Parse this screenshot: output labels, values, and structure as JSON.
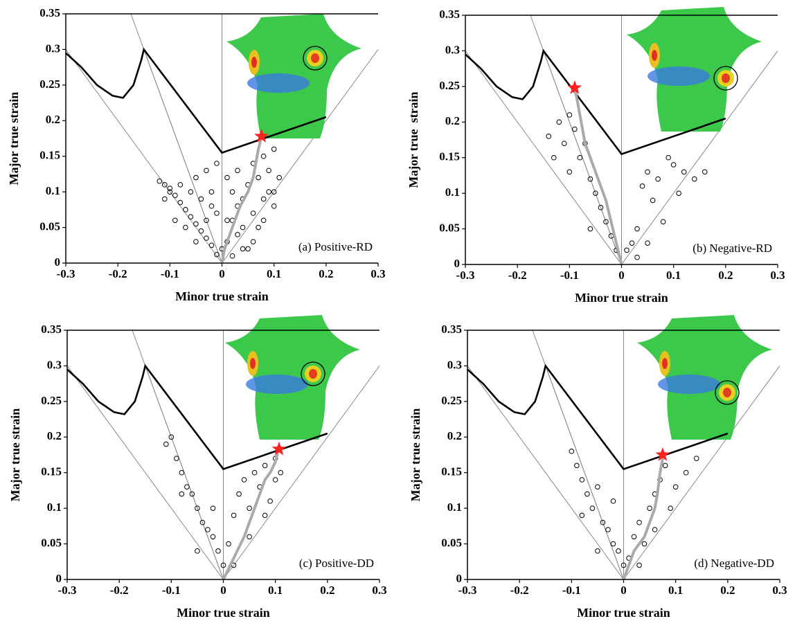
{
  "chart_data": [
    {
      "type": "scatter",
      "label": "(a) Positive-RD",
      "xlabel": "Minor true strain",
      "ylabel": "Major true strain",
      "xlim": [
        -0.3,
        0.3
      ],
      "xticks": [
        -0.3,
        -0.2,
        -0.1,
        0,
        0.1,
        0.2,
        0.3
      ],
      "ylim": [
        0,
        0.35
      ],
      "yticks": [
        0,
        0.05,
        0.1,
        0.15,
        0.2,
        0.25,
        0.3,
        0.35
      ],
      "point_color": "#000000",
      "path_color": "#aaaaaa",
      "star_color": "#ff2020",
      "flc_color": "#000000",
      "reference_color": "#888888",
      "points": {
        "x": [
          -0.12,
          -0.11,
          -0.1,
          -0.09,
          -0.08,
          -0.07,
          -0.06,
          -0.05,
          -0.04,
          -0.03,
          -0.02,
          -0.01,
          -0.11,
          -0.1,
          -0.08,
          -0.06,
          -0.04,
          -0.02,
          -0.05,
          -0.03,
          -0.01,
          0.01,
          0.02,
          0.03,
          0.04,
          0.05,
          0.06,
          0.07,
          0.08,
          0.09,
          0.1,
          0.11,
          0.02,
          0.04,
          0.06,
          0.08,
          0.1,
          0,
          0.01,
          0.02,
          0.03,
          0.05,
          0.07,
          0.09,
          -0.07,
          -0.05,
          -0.03,
          -0.01,
          0.01,
          0.03,
          0.06,
          0.08,
          0.1,
          0.04,
          -0.09,
          -0.02
        ],
        "y": [
          0.115,
          0.11,
          0.105,
          0.095,
          0.085,
          0.075,
          0.065,
          0.055,
          0.045,
          0.035,
          0.025,
          0.012,
          0.09,
          0.1,
          0.11,
          0.1,
          0.09,
          0.08,
          0.12,
          0.13,
          0.14,
          0.12,
          0.1,
          0.13,
          0.09,
          0.11,
          0.14,
          0.12,
          0.15,
          0.13,
          0.16,
          0.12,
          0.06,
          0.05,
          0.07,
          0.09,
          0.08,
          0.02,
          0.03,
          0.01,
          0.04,
          0.02,
          0.05,
          0.1,
          0.05,
          0.03,
          0.06,
          0.07,
          0.06,
          0.08,
          0.03,
          0.06,
          0.1,
          0.02,
          0.06,
          0.1
        ]
      },
      "flc": {
        "x": [
          -0.3,
          -0.27,
          -0.24,
          -0.21,
          -0.19,
          -0.17,
          -0.155,
          -0.15,
          0,
          0.2
        ],
        "y": [
          0.295,
          0.275,
          0.25,
          0.235,
          0.232,
          0.25,
          0.285,
          0.3,
          0.155,
          0.205
        ]
      },
      "reference_lines": [
        {
          "x": [
            -0.3,
            0
          ],
          "y": [
            0.3,
            0
          ]
        },
        {
          "x": [
            -0.175,
            0
          ],
          "y": [
            0.35,
            0
          ]
        },
        {
          "x": [
            -0.15,
            0
          ],
          "y": [
            0.3,
            0
          ]
        },
        {
          "x": [
            0,
            0
          ],
          "y": [
            0,
            0.35
          ]
        },
        {
          "x": [
            0,
            0.3
          ],
          "y": [
            0,
            0.3
          ]
        }
      ],
      "strain_path": {
        "x": [
          0,
          0.005,
          0.02,
          0.035,
          0.05,
          0.06,
          0.065,
          0.07,
          0.075
        ],
        "y": [
          0,
          0.02,
          0.05,
          0.08,
          0.1,
          0.12,
          0.14,
          0.16,
          0.175
        ]
      },
      "failure_point": {
        "x": 0.076,
        "y": 0.178
      }
    },
    {
      "type": "scatter",
      "label": "(b) Negative-RD",
      "xlabel": "Minor true strain",
      "ylabel": "Major true  strain",
      "xlim": [
        -0.3,
        0.3
      ],
      "xticks": [
        -0.3,
        -0.2,
        -0.1,
        0,
        0.1,
        0.2,
        0.3
      ],
      "ylim": [
        0,
        0.35
      ],
      "yticks": [
        0,
        0.05,
        0.1,
        0.15,
        0.2,
        0.25,
        0.3,
        0.35
      ],
      "point_color": "#000000",
      "path_color": "#aaaaaa",
      "star_color": "#ff2020",
      "flc_color": "#000000",
      "reference_color": "#888888",
      "points": {
        "x": [
          -0.14,
          -0.13,
          -0.12,
          -0.11,
          -0.1,
          -0.09,
          -0.08,
          -0.07,
          -0.06,
          -0.05,
          -0.04,
          -0.03,
          -0.02,
          -0.01,
          0.01,
          0.02,
          0.03,
          0.04,
          0.05,
          0.06,
          0.07,
          0.08,
          0.09,
          0.1,
          0.11,
          0.12,
          0.14,
          0.16,
          0.03,
          0.05,
          -0.06,
          -0.1
        ],
        "y": [
          0.18,
          0.15,
          0.2,
          0.17,
          0.21,
          0.19,
          0.15,
          0.17,
          0.12,
          0.1,
          0.08,
          0.06,
          0.04,
          0.02,
          0.02,
          0.03,
          0.05,
          0.11,
          0.13,
          0.09,
          0.12,
          0.06,
          0.15,
          0.14,
          0.1,
          0.13,
          0.12,
          0.13,
          0.01,
          0.03,
          0.05,
          0.13
        ]
      },
      "flc": {
        "x": [
          -0.3,
          -0.27,
          -0.24,
          -0.21,
          -0.19,
          -0.17,
          -0.155,
          -0.15,
          0,
          0.2
        ],
        "y": [
          0.295,
          0.275,
          0.25,
          0.235,
          0.232,
          0.25,
          0.285,
          0.3,
          0.155,
          0.205
        ]
      },
      "reference_lines": [
        {
          "x": [
            -0.3,
            0
          ],
          "y": [
            0.3,
            0
          ]
        },
        {
          "x": [
            -0.175,
            0
          ],
          "y": [
            0.35,
            0
          ]
        },
        {
          "x": [
            -0.15,
            0
          ],
          "y": [
            0.3,
            0
          ]
        },
        {
          "x": [
            0,
            0
          ],
          "y": [
            0,
            0.35
          ]
        },
        {
          "x": [
            0,
            0.3
          ],
          "y": [
            0,
            0.3
          ]
        }
      ],
      "strain_path": {
        "x": [
          0,
          -0.01,
          -0.02,
          -0.03,
          -0.045,
          -0.06,
          -0.07,
          -0.075,
          -0.08,
          -0.085,
          -0.09
        ],
        "y": [
          0,
          0.03,
          0.06,
          0.09,
          0.12,
          0.15,
          0.17,
          0.19,
          0.21,
          0.23,
          0.248
        ]
      },
      "failure_point": {
        "x": -0.09,
        "y": 0.248
      }
    },
    {
      "type": "scatter",
      "label": "(c) Positive-DD",
      "xlabel": "Minor true strain",
      "ylabel": "Major true strain",
      "xlim": [
        -0.3,
        0.3
      ],
      "xticks": [
        -0.3,
        -0.2,
        -0.1,
        0,
        0.1,
        0.2,
        0.3
      ],
      "ylim": [
        0,
        0.35
      ],
      "yticks": [
        0,
        0.05,
        0.1,
        0.15,
        0.2,
        0.25,
        0.3,
        0.35
      ],
      "point_color": "#000000",
      "path_color": "#aaaaaa",
      "star_color": "#ff2020",
      "flc_color": "#000000",
      "reference_color": "#888888",
      "points": {
        "x": [
          -0.11,
          -0.1,
          -0.09,
          -0.08,
          -0.07,
          -0.06,
          -0.05,
          -0.04,
          -0.03,
          -0.02,
          -0.01,
          0,
          0.01,
          0.02,
          0.03,
          0.04,
          0.05,
          0.06,
          0.07,
          0.08,
          0.09,
          0.1,
          0.11,
          -0.08,
          -0.05,
          -0.02,
          0.02,
          0.05,
          0.08,
          0.1
        ],
        "y": [
          0.19,
          0.2,
          0.17,
          0.15,
          0.13,
          0.12,
          0.1,
          0.08,
          0.07,
          0.06,
          0.04,
          0.02,
          0.05,
          0.09,
          0.12,
          0.14,
          0.1,
          0.15,
          0.13,
          0.16,
          0.11,
          0.14,
          0.15,
          0.12,
          0.04,
          0.1,
          0.02,
          0.06,
          0.09,
          0.17
        ]
      },
      "flc": {
        "x": [
          -0.3,
          -0.27,
          -0.24,
          -0.21,
          -0.19,
          -0.17,
          -0.155,
          -0.15,
          0,
          0.2
        ],
        "y": [
          0.295,
          0.275,
          0.25,
          0.235,
          0.232,
          0.25,
          0.285,
          0.3,
          0.155,
          0.205
        ]
      },
      "reference_lines": [
        {
          "x": [
            -0.3,
            0
          ],
          "y": [
            0.3,
            0
          ]
        },
        {
          "x": [
            -0.175,
            0
          ],
          "y": [
            0.35,
            0
          ]
        },
        {
          "x": [
            -0.15,
            0
          ],
          "y": [
            0.3,
            0
          ]
        },
        {
          "x": [
            0,
            0
          ],
          "y": [
            0,
            0.35
          ]
        },
        {
          "x": [
            0,
            0.3
          ],
          "y": [
            0,
            0.3
          ]
        }
      ],
      "strain_path": {
        "x": [
          0,
          0.02,
          0.04,
          0.05,
          0.06,
          0.07,
          0.08,
          0.09,
          0.1,
          0.105
        ],
        "y": [
          0,
          0.03,
          0.06,
          0.08,
          0.1,
          0.12,
          0.14,
          0.15,
          0.165,
          0.18
        ]
      },
      "failure_point": {
        "x": 0.107,
        "y": 0.183
      }
    },
    {
      "type": "scatter",
      "label": "(d) Negative-DD",
      "xlabel": "Minor true strain",
      "ylabel": "Major true strain",
      "xlim": [
        -0.3,
        0.3
      ],
      "xticks": [
        -0.3,
        -0.2,
        -0.1,
        0,
        0.1,
        0.2,
        0.3
      ],
      "ylim": [
        0,
        0.35
      ],
      "yticks": [
        0,
        0.05,
        0.1,
        0.15,
        0.2,
        0.25,
        0.3,
        0.35
      ],
      "point_color": "#000000",
      "path_color": "#aaaaaa",
      "star_color": "#ff2020",
      "flc_color": "#000000",
      "reference_color": "#888888",
      "points": {
        "x": [
          -0.1,
          -0.09,
          -0.08,
          -0.07,
          -0.06,
          -0.05,
          -0.04,
          -0.03,
          -0.02,
          -0.01,
          0,
          0.01,
          0.02,
          0.03,
          0.04,
          0.05,
          0.06,
          0.07,
          0.08,
          0.09,
          0.1,
          0.12,
          0.14,
          -0.08,
          -0.05,
          -0.02,
          0.03,
          0.06
        ],
        "y": [
          0.18,
          0.16,
          0.14,
          0.12,
          0.1,
          0.13,
          0.08,
          0.07,
          0.05,
          0.04,
          0.02,
          0.03,
          0.06,
          0.08,
          0.05,
          0.1,
          0.12,
          0.14,
          0.16,
          0.1,
          0.13,
          0.15,
          0.17,
          0.09,
          0.04,
          0.11,
          0.02,
          0.07
        ]
      },
      "flc": {
        "x": [
          -0.3,
          -0.27,
          -0.24,
          -0.21,
          -0.19,
          -0.17,
          -0.155,
          -0.15,
          0,
          0.2
        ],
        "y": [
          0.295,
          0.275,
          0.25,
          0.235,
          0.232,
          0.25,
          0.285,
          0.3,
          0.155,
          0.205
        ]
      },
      "reference_lines": [
        {
          "x": [
            -0.3,
            0
          ],
          "y": [
            0.3,
            0
          ]
        },
        {
          "x": [
            -0.175,
            0
          ],
          "y": [
            0.35,
            0
          ]
        },
        {
          "x": [
            -0.15,
            0
          ],
          "y": [
            0.3,
            0
          ]
        },
        {
          "x": [
            0,
            0
          ],
          "y": [
            0,
            0.35
          ]
        },
        {
          "x": [
            0,
            0.3
          ],
          "y": [
            0,
            0.3
          ]
        }
      ],
      "strain_path": {
        "x": [
          0,
          0.01,
          0.02,
          0.04,
          0.05,
          0.06,
          0.065,
          0.07,
          0.075
        ],
        "y": [
          0,
          0.02,
          0.04,
          0.06,
          0.08,
          0.1,
          0.12,
          0.15,
          0.17
        ]
      },
      "failure_point": {
        "x": 0.075,
        "y": 0.175
      }
    }
  ]
}
